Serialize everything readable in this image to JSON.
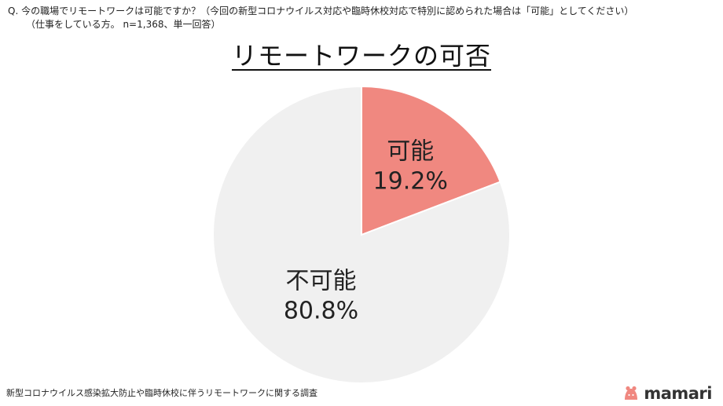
{
  "question": {
    "line1": "Q.  今の職場でリモートワークは可能ですか？（今回の新型コロナウイルス対応や臨時休校対応で特別に認められた場合は「可能」としてください）",
    "line2": "（仕事をしている方。 n=1,368、単一回答）"
  },
  "chart_data": {
    "type": "pie",
    "title": "リモートワークの可否",
    "slices": [
      {
        "label": "可能",
        "value": 19.2,
        "value_label": "19.2%",
        "color": "#f08880"
      },
      {
        "label": "不可能",
        "value": 80.8,
        "value_label": "80.8%",
        "color": "#f0f0f0"
      }
    ],
    "start_angle_deg": 0,
    "direction": "clockwise",
    "legend": "none"
  },
  "footer": {
    "note": "新型コロナウイルス感染拡大防止や臨時休校に伴うリモートワークに関する調査"
  },
  "brand": {
    "name": "mamari",
    "color": "#f08880",
    "icon": "mamari-logo-icon"
  }
}
